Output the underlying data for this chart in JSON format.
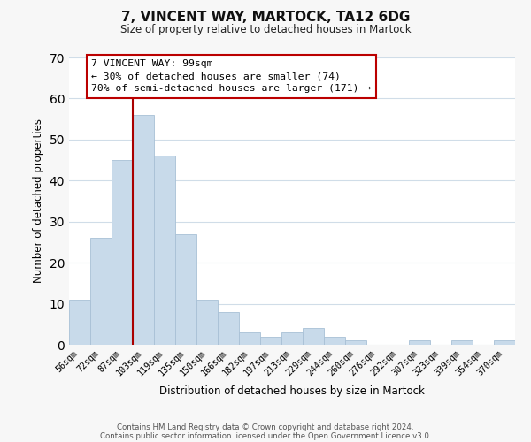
{
  "title": "7, VINCENT WAY, MARTOCK, TA12 6DG",
  "subtitle": "Size of property relative to detached houses in Martock",
  "xlabel": "Distribution of detached houses by size in Martock",
  "ylabel": "Number of detached properties",
  "bar_labels": [
    "56sqm",
    "72sqm",
    "87sqm",
    "103sqm",
    "119sqm",
    "135sqm",
    "150sqm",
    "166sqm",
    "182sqm",
    "197sqm",
    "213sqm",
    "229sqm",
    "244sqm",
    "260sqm",
    "276sqm",
    "292sqm",
    "307sqm",
    "323sqm",
    "339sqm",
    "354sqm",
    "370sqm"
  ],
  "bar_values": [
    11,
    26,
    45,
    56,
    46,
    27,
    11,
    8,
    3,
    2,
    3,
    4,
    2,
    1,
    0,
    0,
    1,
    0,
    1,
    0,
    1
  ],
  "bar_color": "#c8daea",
  "bar_edge_color": "#a8c0d6",
  "vline_color": "#aa0000",
  "ylim": [
    0,
    70
  ],
  "yticks": [
    0,
    10,
    20,
    30,
    40,
    50,
    60,
    70
  ],
  "annotation_title": "7 VINCENT WAY: 99sqm",
  "annotation_line1": "← 30% of detached houses are smaller (74)",
  "annotation_line2": "70% of semi-detached houses are larger (171) →",
  "annotation_box_color": "#ffffff",
  "annotation_box_edge_color": "#bb0000",
  "footnote1": "Contains HM Land Registry data © Crown copyright and database right 2024.",
  "footnote2": "Contains public sector information licensed under the Open Government Licence v3.0.",
  "background_color": "#f7f7f7",
  "plot_background_color": "#ffffff",
  "grid_color": "#d0dde8"
}
